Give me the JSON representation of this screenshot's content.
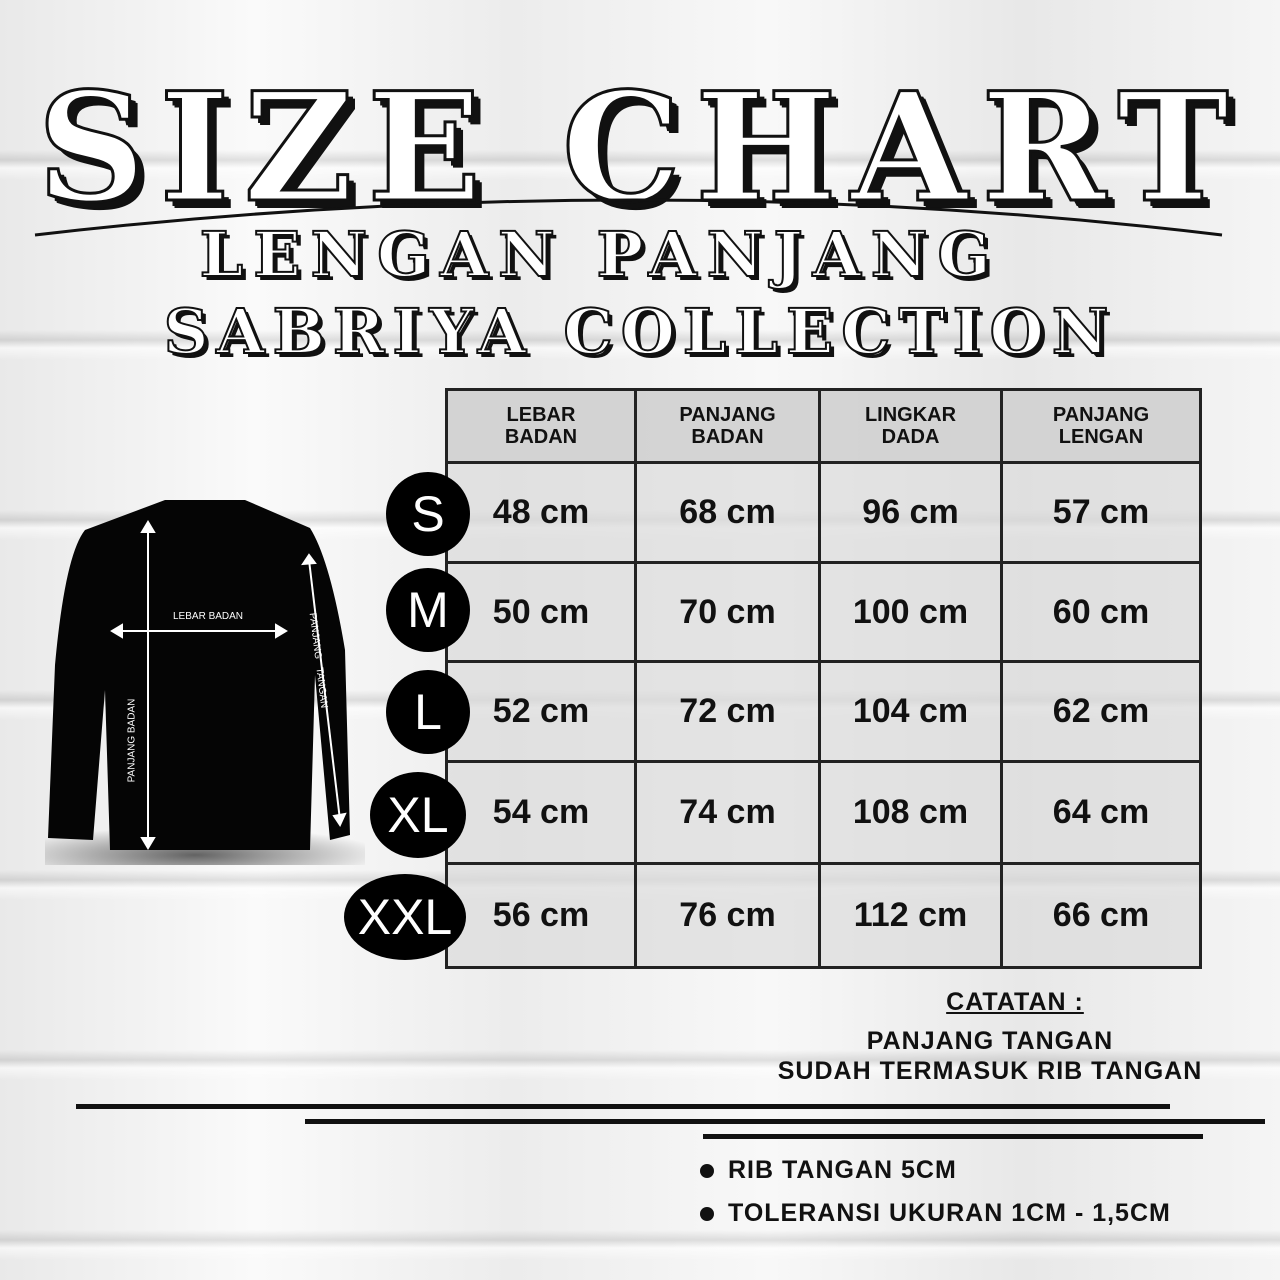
{
  "header": {
    "title": "SIZE CHART",
    "subtitle1": "LENGAN PANJANG",
    "subtitle2": "SABRIYA COLLECTION"
  },
  "diagram": {
    "width_label": "LEBAR BADAN",
    "body_length_label": "PANJANG BADAN",
    "sleeve_label": "PANJANG TANGAN"
  },
  "table": {
    "columns": [
      "LEBAR BADAN",
      "PANJANG BADAN",
      "LINGKAR DADA",
      "PANJANG LENGAN"
    ],
    "rows": [
      {
        "size": "S",
        "values": [
          "48 cm",
          "68 cm",
          "96 cm",
          "57 cm"
        ]
      },
      {
        "size": "M",
        "values": [
          "50 cm",
          "70 cm",
          "100 cm",
          "60 cm"
        ]
      },
      {
        "size": "L",
        "values": [
          "52 cm",
          "72 cm",
          "104 cm",
          "62 cm"
        ]
      },
      {
        "size": "XL",
        "values": [
          "54 cm",
          "74 cm",
          "108 cm",
          "64 cm"
        ]
      },
      {
        "size": "XXL",
        "values": [
          "56 cm",
          "76 cm",
          "112 cm",
          "66 cm"
        ]
      }
    ]
  },
  "notes": {
    "heading": "CATATAN :",
    "line1": "PANJANG TANGAN",
    "line2": "SUDAH TERMASUK RIB TANGAN",
    "bullets": [
      "RIB TANGAN 5CM",
      "TOLERANSI UKURAN 1CM - 1,5CM"
    ]
  }
}
